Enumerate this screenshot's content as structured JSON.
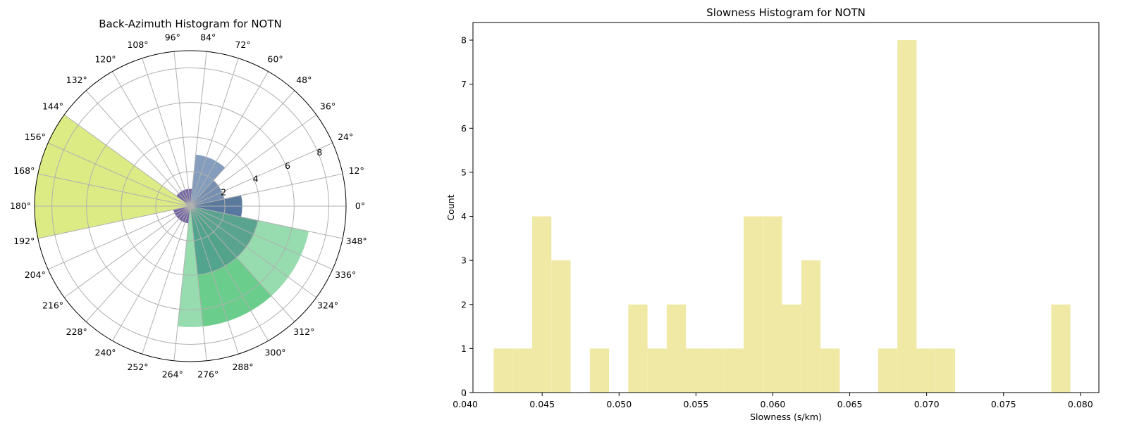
{
  "chart_data": [
    {
      "type": "bar",
      "subtype": "polar",
      "title": "Back-Azimuth Histogram for NOTN",
      "angle_ticks": [
        "0°",
        "12°",
        "24°",
        "36°",
        "48°",
        "60°",
        "72°",
        "84°",
        "96°",
        "108°",
        "120°",
        "132°",
        "144°",
        "156°",
        "168°",
        "180°",
        "192°",
        "204°",
        "216°",
        "228°",
        "240°",
        "252°",
        "264°",
        "276°",
        "288°",
        "300°",
        "312°",
        "324°",
        "336°",
        "348°"
      ],
      "radial_ticks": [
        "2",
        "4",
        "6",
        "8"
      ],
      "rlim": [
        0,
        9
      ],
      "grid": true,
      "bins": [
        {
          "start": 0,
          "end": 12,
          "value": 3,
          "color": "#4a6d99"
        },
        {
          "start": 12,
          "end": 24,
          "value": 2,
          "color": "#6b86aa"
        },
        {
          "start": 24,
          "end": 36,
          "value": 2,
          "color": "#6b86aa"
        },
        {
          "start": 36,
          "end": 48,
          "value": 2,
          "color": "#6b86aa"
        },
        {
          "start": 48,
          "end": 60,
          "value": 3,
          "color": "#7b96b8"
        },
        {
          "start": 60,
          "end": 72,
          "value": 3,
          "color": "#7b96b8"
        },
        {
          "start": 72,
          "end": 84,
          "value": 3,
          "color": "#7b96b8"
        },
        {
          "start": 84,
          "end": 96,
          "value": 1,
          "color": "#6a5a9c"
        },
        {
          "start": 96,
          "end": 108,
          "value": 1,
          "color": "#6a5a9c"
        },
        {
          "start": 108,
          "end": 120,
          "value": 1,
          "color": "#6a5a9c"
        },
        {
          "start": 120,
          "end": 132,
          "value": 1,
          "color": "#6a5a9c"
        },
        {
          "start": 132,
          "end": 144,
          "value": 1,
          "color": "#6a5a9c"
        },
        {
          "start": 144,
          "end": 156,
          "value": 9,
          "color": "#d9e97a"
        },
        {
          "start": 156,
          "end": 168,
          "value": 9,
          "color": "#d9e97a"
        },
        {
          "start": 168,
          "end": 180,
          "value": 9,
          "color": "#d9e97a"
        },
        {
          "start": 180,
          "end": 192,
          "value": 9,
          "color": "#d9e97a"
        },
        {
          "start": 192,
          "end": 204,
          "value": 1,
          "color": "#6a5a9c"
        },
        {
          "start": 204,
          "end": 216,
          "value": 1,
          "color": "#6a5a9c"
        },
        {
          "start": 216,
          "end": 228,
          "value": 1,
          "color": "#6a5a9c"
        },
        {
          "start": 228,
          "end": 240,
          "value": 1,
          "color": "#6a5a9c"
        },
        {
          "start": 240,
          "end": 252,
          "value": 1,
          "color": "#6a5a9c"
        },
        {
          "start": 252,
          "end": 264,
          "value": 1,
          "color": "#6a5a9c"
        },
        {
          "start": 264,
          "end": 276,
          "value": 7,
          "color": "#8ed9a8"
        },
        {
          "start": 276,
          "end": 288,
          "value": 7,
          "color": "#5ec982"
        },
        {
          "start": 288,
          "end": 300,
          "value": 7,
          "color": "#5ec982"
        },
        {
          "start": 300,
          "end": 312,
          "value": 7,
          "color": "#5ec982"
        },
        {
          "start": 312,
          "end": 324,
          "value": 7,
          "color": "#8ed9a8"
        },
        {
          "start": 324,
          "end": 336,
          "value": 7,
          "color": "#8ed9a8"
        },
        {
          "start": 336,
          "end": 348,
          "value": 7,
          "color": "#8ed9a8"
        },
        {
          "start": 348,
          "end": 360,
          "value": 3,
          "color": "#4a6d99"
        }
      ],
      "overlays": [
        {
          "start": 0,
          "end": 12,
          "value": 3,
          "color": "#5a7a9a"
        },
        {
          "start": 300,
          "end": 348,
          "value": 4,
          "color": "#4f9a8a"
        },
        {
          "start": 276,
          "end": 300,
          "value": 4,
          "color": "#4e9c8e"
        }
      ]
    },
    {
      "type": "bar",
      "subtype": "histogram",
      "title": "Slowness Histogram for NOTN",
      "xlabel": "Slowness (s/km)",
      "ylabel": "Count",
      "xlim": [
        0.0405,
        0.0812
      ],
      "ylim": [
        0,
        8.4
      ],
      "xticks": [
        "0.040",
        "0.045",
        "0.050",
        "0.055",
        "0.060",
        "0.065",
        "0.070",
        "0.075",
        "0.080"
      ],
      "yticks": [
        "0",
        "1",
        "2",
        "3",
        "4",
        "5",
        "6",
        "7",
        "8"
      ],
      "bar_color": "#f0e9a6",
      "bins": [
        {
          "start": 0.04185,
          "end": 0.0431,
          "value": 1
        },
        {
          "start": 0.0431,
          "end": 0.04435,
          "value": 1
        },
        {
          "start": 0.04435,
          "end": 0.0456,
          "value": 4
        },
        {
          "start": 0.0456,
          "end": 0.04685,
          "value": 3
        },
        {
          "start": 0.0481,
          "end": 0.04935,
          "value": 1
        },
        {
          "start": 0.0506,
          "end": 0.05185,
          "value": 2
        },
        {
          "start": 0.05185,
          "end": 0.0531,
          "value": 1
        },
        {
          "start": 0.0531,
          "end": 0.05435,
          "value": 2
        },
        {
          "start": 0.05435,
          "end": 0.0556,
          "value": 1
        },
        {
          "start": 0.0556,
          "end": 0.05685,
          "value": 1
        },
        {
          "start": 0.05685,
          "end": 0.0581,
          "value": 1
        },
        {
          "start": 0.0581,
          "end": 0.05935,
          "value": 4
        },
        {
          "start": 0.05935,
          "end": 0.0606,
          "value": 4
        },
        {
          "start": 0.0606,
          "end": 0.06185,
          "value": 2
        },
        {
          "start": 0.06185,
          "end": 0.0631,
          "value": 3
        },
        {
          "start": 0.0631,
          "end": 0.06435,
          "value": 1
        },
        {
          "start": 0.06685,
          "end": 0.0681,
          "value": 1
        },
        {
          "start": 0.0681,
          "end": 0.06935,
          "value": 8
        },
        {
          "start": 0.06935,
          "end": 0.0706,
          "value": 1
        },
        {
          "start": 0.0706,
          "end": 0.07185,
          "value": 1
        },
        {
          "start": 0.0781,
          "end": 0.07935,
          "value": 2
        }
      ]
    }
  ]
}
